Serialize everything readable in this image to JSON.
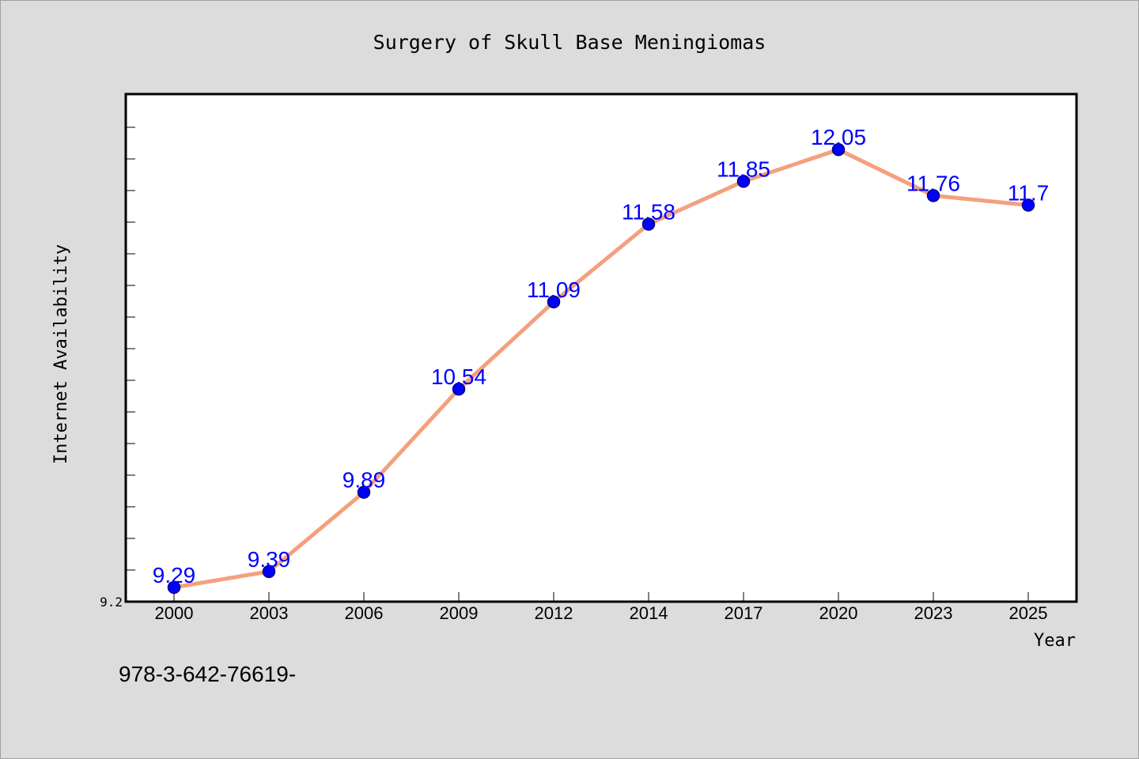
{
  "chart_data": {
    "type": "line",
    "title": "Surgery of Skull Base Meningiomas",
    "xlabel": "Year",
    "ylabel": "Internet Availability",
    "categories": [
      "2000",
      "2003",
      "2006",
      "2009",
      "2012",
      "2014",
      "2017",
      "2020",
      "2023",
      "2025"
    ],
    "series": [
      {
        "values": [
          9.29,
          9.39,
          9.89,
          10.54,
          11.09,
          11.58,
          11.85,
          12.05,
          11.76,
          11.7
        ],
        "data_labels": [
          "9.29",
          "9.39",
          "9.89",
          "10.54",
          "11.09",
          "11.58",
          "11.85",
          "12.05",
          "11.76",
          "11.7"
        ]
      }
    ],
    "yticks": [
      "9.2"
    ],
    "ylim": [
      9.2,
      12.4
    ],
    "grid": false,
    "legend": "none",
    "colors": {
      "line": "#f4a07e",
      "marker": "#0000ff",
      "marker_edge": "#000080",
      "data_label": "#0000ff",
      "plot_background": "#ffffff",
      "figure_background": "#dcdcdc"
    }
  },
  "footer": {
    "text": "978-3-642-76619-"
  }
}
